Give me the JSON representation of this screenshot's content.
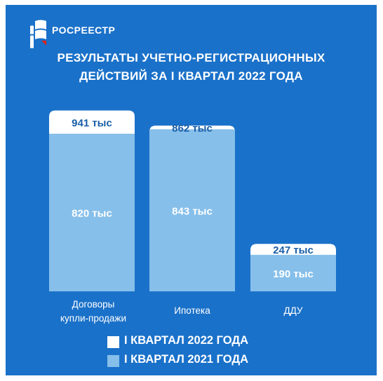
{
  "header": {
    "brand": "РОСРЕЕСТР",
    "logo_icon": "rosreestr-logo-icon",
    "title_line1": "РЕЗУЛЬТАТЫ УЧЕТНО-РЕГИСТРАЦИОННЫХ",
    "title_line2": "ДЕЙСТВИЙ ЗА I КВАРТАЛ 2022 ГОДА"
  },
  "colors": {
    "background": "#1a71c9",
    "series_2022": "#ffffff",
    "series_2021": "#86bfea",
    "value_text": "#1a5ea7"
  },
  "chart_data": {
    "type": "bar",
    "title": "РЕЗУЛЬТАТЫ УЧЕТНО-РЕГИСТРАЦИОННЫХ ДЕЙСТВИЙ ЗА I КВАРТАЛ 2022 ГОДА",
    "categories": [
      [
        "Договоры",
        "купли-продажи"
      ],
      [
        "Ипотека"
      ],
      [
        "ДДУ"
      ]
    ],
    "series": [
      {
        "name": "I КВАРТАЛ 2022 ГОДА",
        "values": [
          941,
          862,
          247
        ],
        "labels": [
          "941 тыс",
          "862 тыс",
          "247 тыс"
        ],
        "color": "#ffffff"
      },
      {
        "name": "I КВАРТАЛ 2021 ГОДА",
        "values": [
          820,
          843,
          190
        ],
        "labels": [
          "820 тыс",
          "843 тыс",
          "190 тыс"
        ],
        "color": "#86bfea"
      }
    ],
    "layering": "2021 bar drawn in front of 2022 bar at the same position",
    "ylim": [
      0,
      1000
    ],
    "grid": false,
    "legend_position": "bottom"
  },
  "legend": {
    "items": [
      {
        "label": "I КВАРТАЛ 2022 ГОДА",
        "color": "#ffffff"
      },
      {
        "label": "I КВАРТАЛ 2021 ГОДА",
        "color": "#86bfea"
      }
    ]
  }
}
